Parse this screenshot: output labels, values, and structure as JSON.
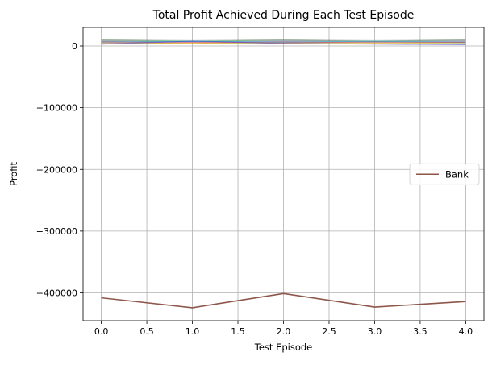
{
  "chart_data": {
    "type": "line",
    "title": "Total Profit Achieved During Each Test Episode",
    "xlabel": "Test Episode",
    "ylabel": "Profit",
    "x": [
      0,
      1,
      2,
      3,
      4
    ],
    "xlim": [
      -0.2,
      4.2
    ],
    "ylim": [
      -445000,
      30000
    ],
    "xticks": [
      0,
      0.5,
      1,
      1.5,
      2,
      2.5,
      3,
      3.5,
      4
    ],
    "xtick_labels": [
      "0.0",
      "0.5",
      "1.0",
      "1.5",
      "2.0",
      "2.5",
      "3.0",
      "3.5",
      "4.0"
    ],
    "yticks": [
      0,
      -100000,
      -200000,
      -300000,
      -400000
    ],
    "ytick_labels": [
      "0",
      "−100000",
      "−200000",
      "−300000",
      "−400000"
    ],
    "grid": true,
    "legend": {
      "position": "center-right",
      "entries": [
        "Bank"
      ]
    },
    "series": [
      {
        "name": "Bank",
        "color": "#8c564b",
        "values": [
          -408000,
          -424000,
          -401000,
          -423000,
          -414000
        ]
      },
      {
        "color": "#1f77b4",
        "values": [
          5000,
          7000,
          6000,
          6500,
          5500
        ]
      },
      {
        "color": "#ff7f0e",
        "values": [
          6000,
          4000,
          7000,
          5000,
          6000
        ]
      },
      {
        "color": "#2ca02c",
        "values": [
          9000,
          8000,
          9000,
          8000,
          9000
        ]
      },
      {
        "color": "#d62728",
        "values": [
          7000,
          6000,
          5000,
          7000,
          6000
        ]
      },
      {
        "color": "#9467bd",
        "values": [
          8000,
          7000,
          8000,
          7500,
          8000
        ]
      },
      {
        "color": "#e377c2",
        "values": [
          5000,
          6000,
          7000,
          6000,
          7000
        ]
      },
      {
        "color": "#7f7f7f",
        "values": [
          10000,
          11000,
          10000,
          11000,
          10000
        ]
      },
      {
        "color": "#bcbd22",
        "values": [
          4000,
          5000,
          4000,
          5000,
          4000
        ]
      },
      {
        "color": "#17becf",
        "values": [
          6500,
          7500,
          6500,
          7500,
          6500
        ]
      },
      {
        "color": "#4444cc",
        "values": [
          3000,
          8000,
          4000,
          3000,
          2000
        ]
      }
    ]
  }
}
